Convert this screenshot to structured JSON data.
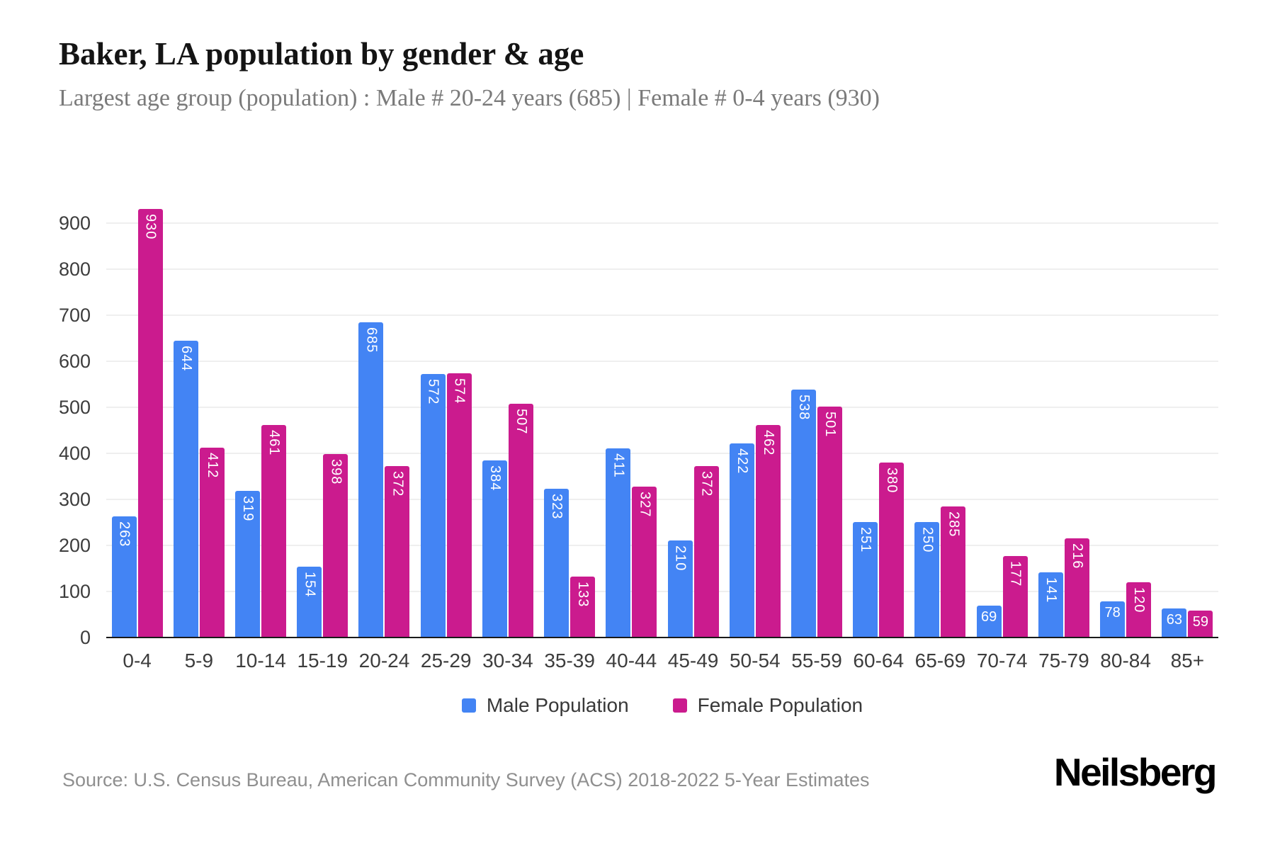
{
  "title": "Baker, LA population by gender & age",
  "subtitle": "Largest age group (population) : Male # 20-24 years (685) | Female # 0-4 years (930)",
  "source": "Source: U.S. Census Bureau, American Community Survey (ACS) 2018-2022 5-Year Estimates",
  "brand": "Neilsberg",
  "colors": {
    "male": "#4384f4",
    "female": "#cb1b8e",
    "gridline": "#efefef",
    "axis_line": "#1a1a1a",
    "tick_text": "#3d3d3d",
    "bar_label_text": "#ffffff"
  },
  "legend": [
    {
      "label": "Male Population",
      "color": "#4384f4"
    },
    {
      "label": "Female Population",
      "color": "#cb1b8e"
    }
  ],
  "chart_data": {
    "type": "bar",
    "title": "Baker, LA population by gender & age",
    "xlabel": "",
    "ylabel": "",
    "categories": [
      "0-4",
      "5-9",
      "10-14",
      "15-19",
      "20-24",
      "25-29",
      "30-34",
      "35-39",
      "40-44",
      "45-49",
      "50-54",
      "55-59",
      "60-64",
      "65-69",
      "70-74",
      "75-79",
      "80-84",
      "85+"
    ],
    "series": [
      {
        "name": "Male Population",
        "color": "#4384f4",
        "values": [
          263,
          644,
          319,
          154,
          685,
          572,
          384,
          323,
          411,
          210,
          422,
          538,
          251,
          250,
          69,
          141,
          78,
          63
        ]
      },
      {
        "name": "Female Population",
        "color": "#cb1b8e",
        "values": [
          930,
          412,
          461,
          398,
          372,
          574,
          507,
          133,
          327,
          372,
          462,
          501,
          380,
          285,
          177,
          216,
          120,
          59
        ]
      }
    ],
    "y_ticks": [
      0,
      100,
      200,
      300,
      400,
      500,
      600,
      700,
      800,
      900
    ],
    "ylim": [
      0,
      1000
    ],
    "grid": true,
    "legend_position": "bottom"
  }
}
